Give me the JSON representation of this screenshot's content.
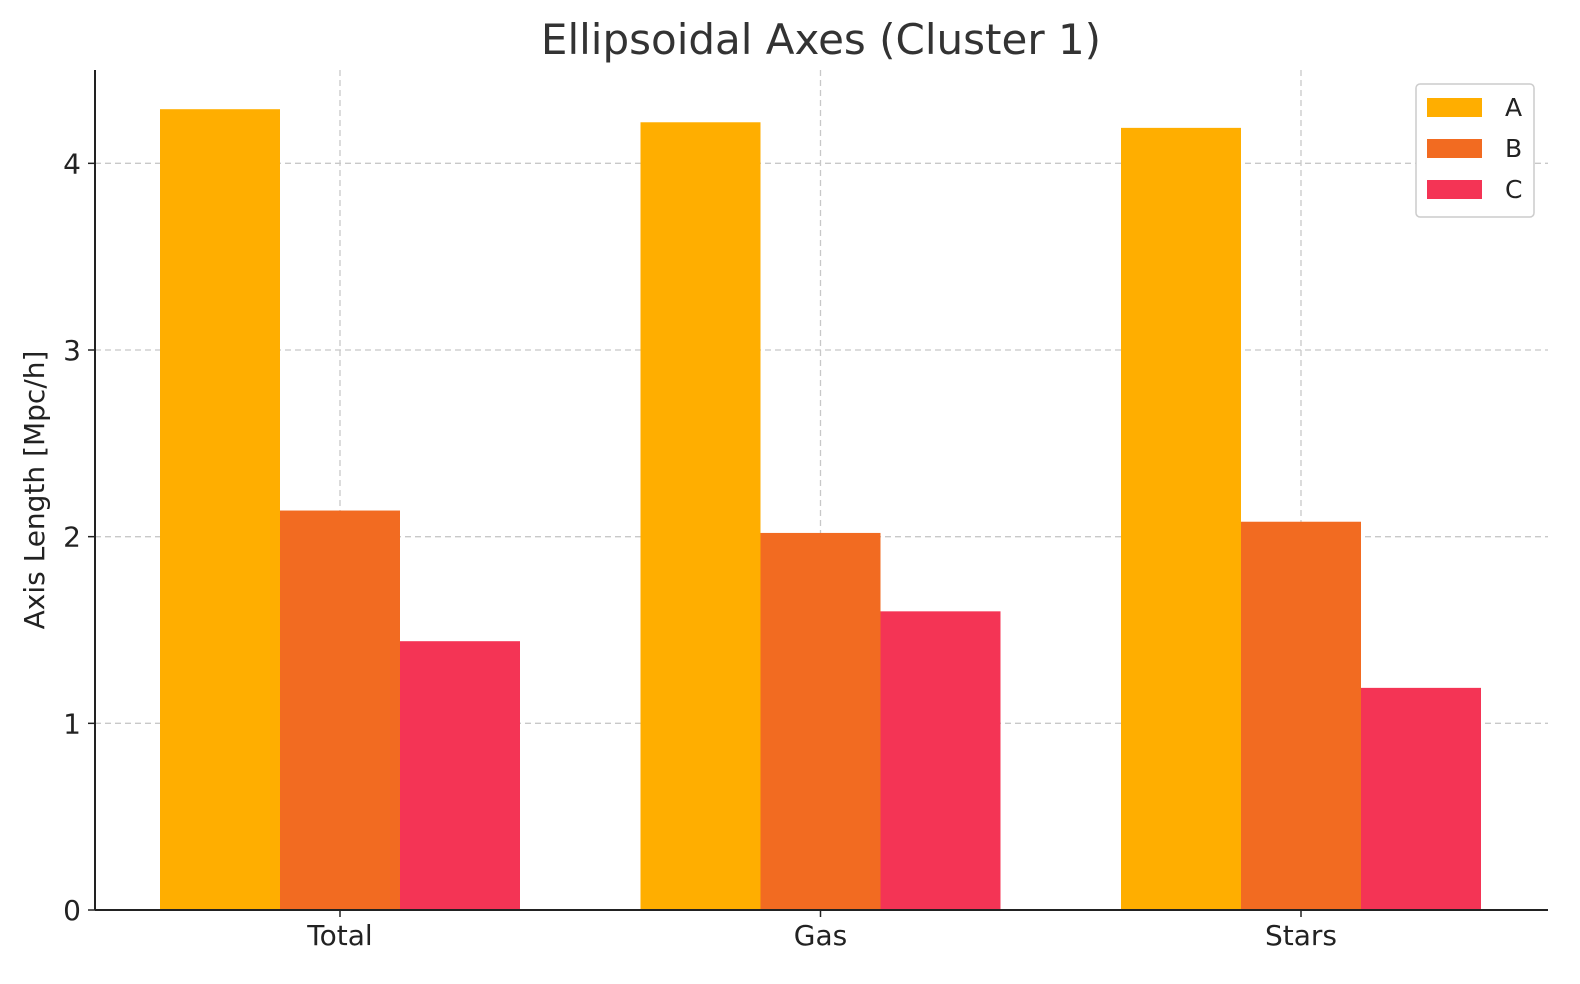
{
  "chart_data": {
    "type": "bar",
    "title": "Ellipsoidal Axes (Cluster 1)",
    "xlabel": "",
    "ylabel": "Axis Length [Mpc/h]",
    "categories": [
      "Total",
      "Gas",
      "Stars"
    ],
    "series": [
      {
        "name": "A",
        "color": "#FFAE00",
        "values": [
          4.29,
          4.22,
          4.19
        ]
      },
      {
        "name": "B",
        "color": "#F26B21",
        "values": [
          2.14,
          2.02,
          2.08
        ]
      },
      {
        "name": "C",
        "color": "#F43455",
        "values": [
          1.44,
          1.6,
          1.19
        ]
      }
    ],
    "ylim": [
      0,
      4.5
    ],
    "yticks": [
      0,
      1,
      2,
      3,
      4
    ],
    "grid": true,
    "legend_position": "top-right"
  }
}
